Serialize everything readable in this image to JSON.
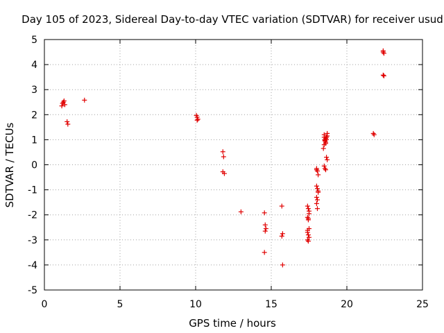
{
  "chart_data": {
    "type": "scatter",
    "title": "Day 105 of 2023, Sidereal Day-to-day VTEC variation (SDTVAR) for receiver usud",
    "xlabel": "GPS time / hours",
    "ylabel": "SDTVAR / TECUs",
    "xlim": [
      0,
      25
    ],
    "ylim": [
      -5,
      5
    ],
    "xticks": [
      "0",
      "5",
      "10",
      "15",
      "20",
      "25"
    ],
    "yticks": [
      "-5",
      "-4",
      "-3",
      "-2",
      "-1",
      "0",
      "1",
      "2",
      "3",
      "4",
      "5"
    ],
    "grid": true,
    "marker": "plus",
    "color": "#e00000",
    "series": [
      {
        "x": [
          1.15,
          1.2,
          1.25,
          1.3,
          1.35,
          1.5,
          1.55,
          2.65,
          10.05,
          10.1,
          10.15,
          10.1,
          11.8,
          11.85,
          11.8,
          11.9,
          13.0,
          14.55,
          14.6,
          14.65,
          14.6,
          14.55,
          15.7,
          15.75,
          15.7,
          15.75,
          17.4,
          17.45,
          17.5,
          17.4,
          17.45,
          17.5,
          17.4,
          17.45,
          17.5,
          17.4,
          17.45,
          17.5,
          17.4,
          17.45,
          18.0,
          18.05,
          18.1,
          18.0,
          18.05,
          18.1,
          18.0,
          18.05,
          18.0,
          18.05,
          18.1,
          18.0,
          18.45,
          18.5,
          18.55,
          18.6,
          18.65,
          18.7,
          18.5,
          18.55,
          18.6,
          18.65,
          18.7,
          18.5,
          18.55,
          18.6,
          18.5,
          18.55,
          18.6,
          18.7,
          18.65,
          21.75,
          21.8,
          22.4,
          22.45,
          22.4,
          22.45,
          22.4
        ],
        "y": [
          2.35,
          2.45,
          2.5,
          2.55,
          2.4,
          1.72,
          1.62,
          2.58,
          1.97,
          1.9,
          1.82,
          1.78,
          0.52,
          0.32,
          -0.28,
          -0.35,
          -1.88,
          -1.92,
          -2.4,
          -2.55,
          -2.65,
          -3.5,
          -1.65,
          -2.75,
          -2.85,
          -4.0,
          -1.65,
          -1.75,
          -1.85,
          -2.1,
          -2.2,
          -2.55,
          -2.7,
          -2.8,
          -2.9,
          -3.0,
          -3.05,
          -1.95,
          -2.62,
          -2.15,
          -0.15,
          -0.25,
          -0.4,
          -0.85,
          -0.95,
          -1.05,
          -1.3,
          -1.4,
          -1.55,
          -1.75,
          -1.1,
          -0.2,
          0.65,
          0.8,
          0.95,
          1.05,
          1.1,
          1.15,
          1.2,
          1.0,
          0.9,
          0.3,
          0.2,
          -0.05,
          -0.15,
          -0.2,
          1.1,
          0.98,
          0.85,
          1.25,
          1.0,
          1.25,
          1.2,
          4.55,
          4.45,
          3.58,
          3.55,
          4.5
        ]
      }
    ]
  }
}
